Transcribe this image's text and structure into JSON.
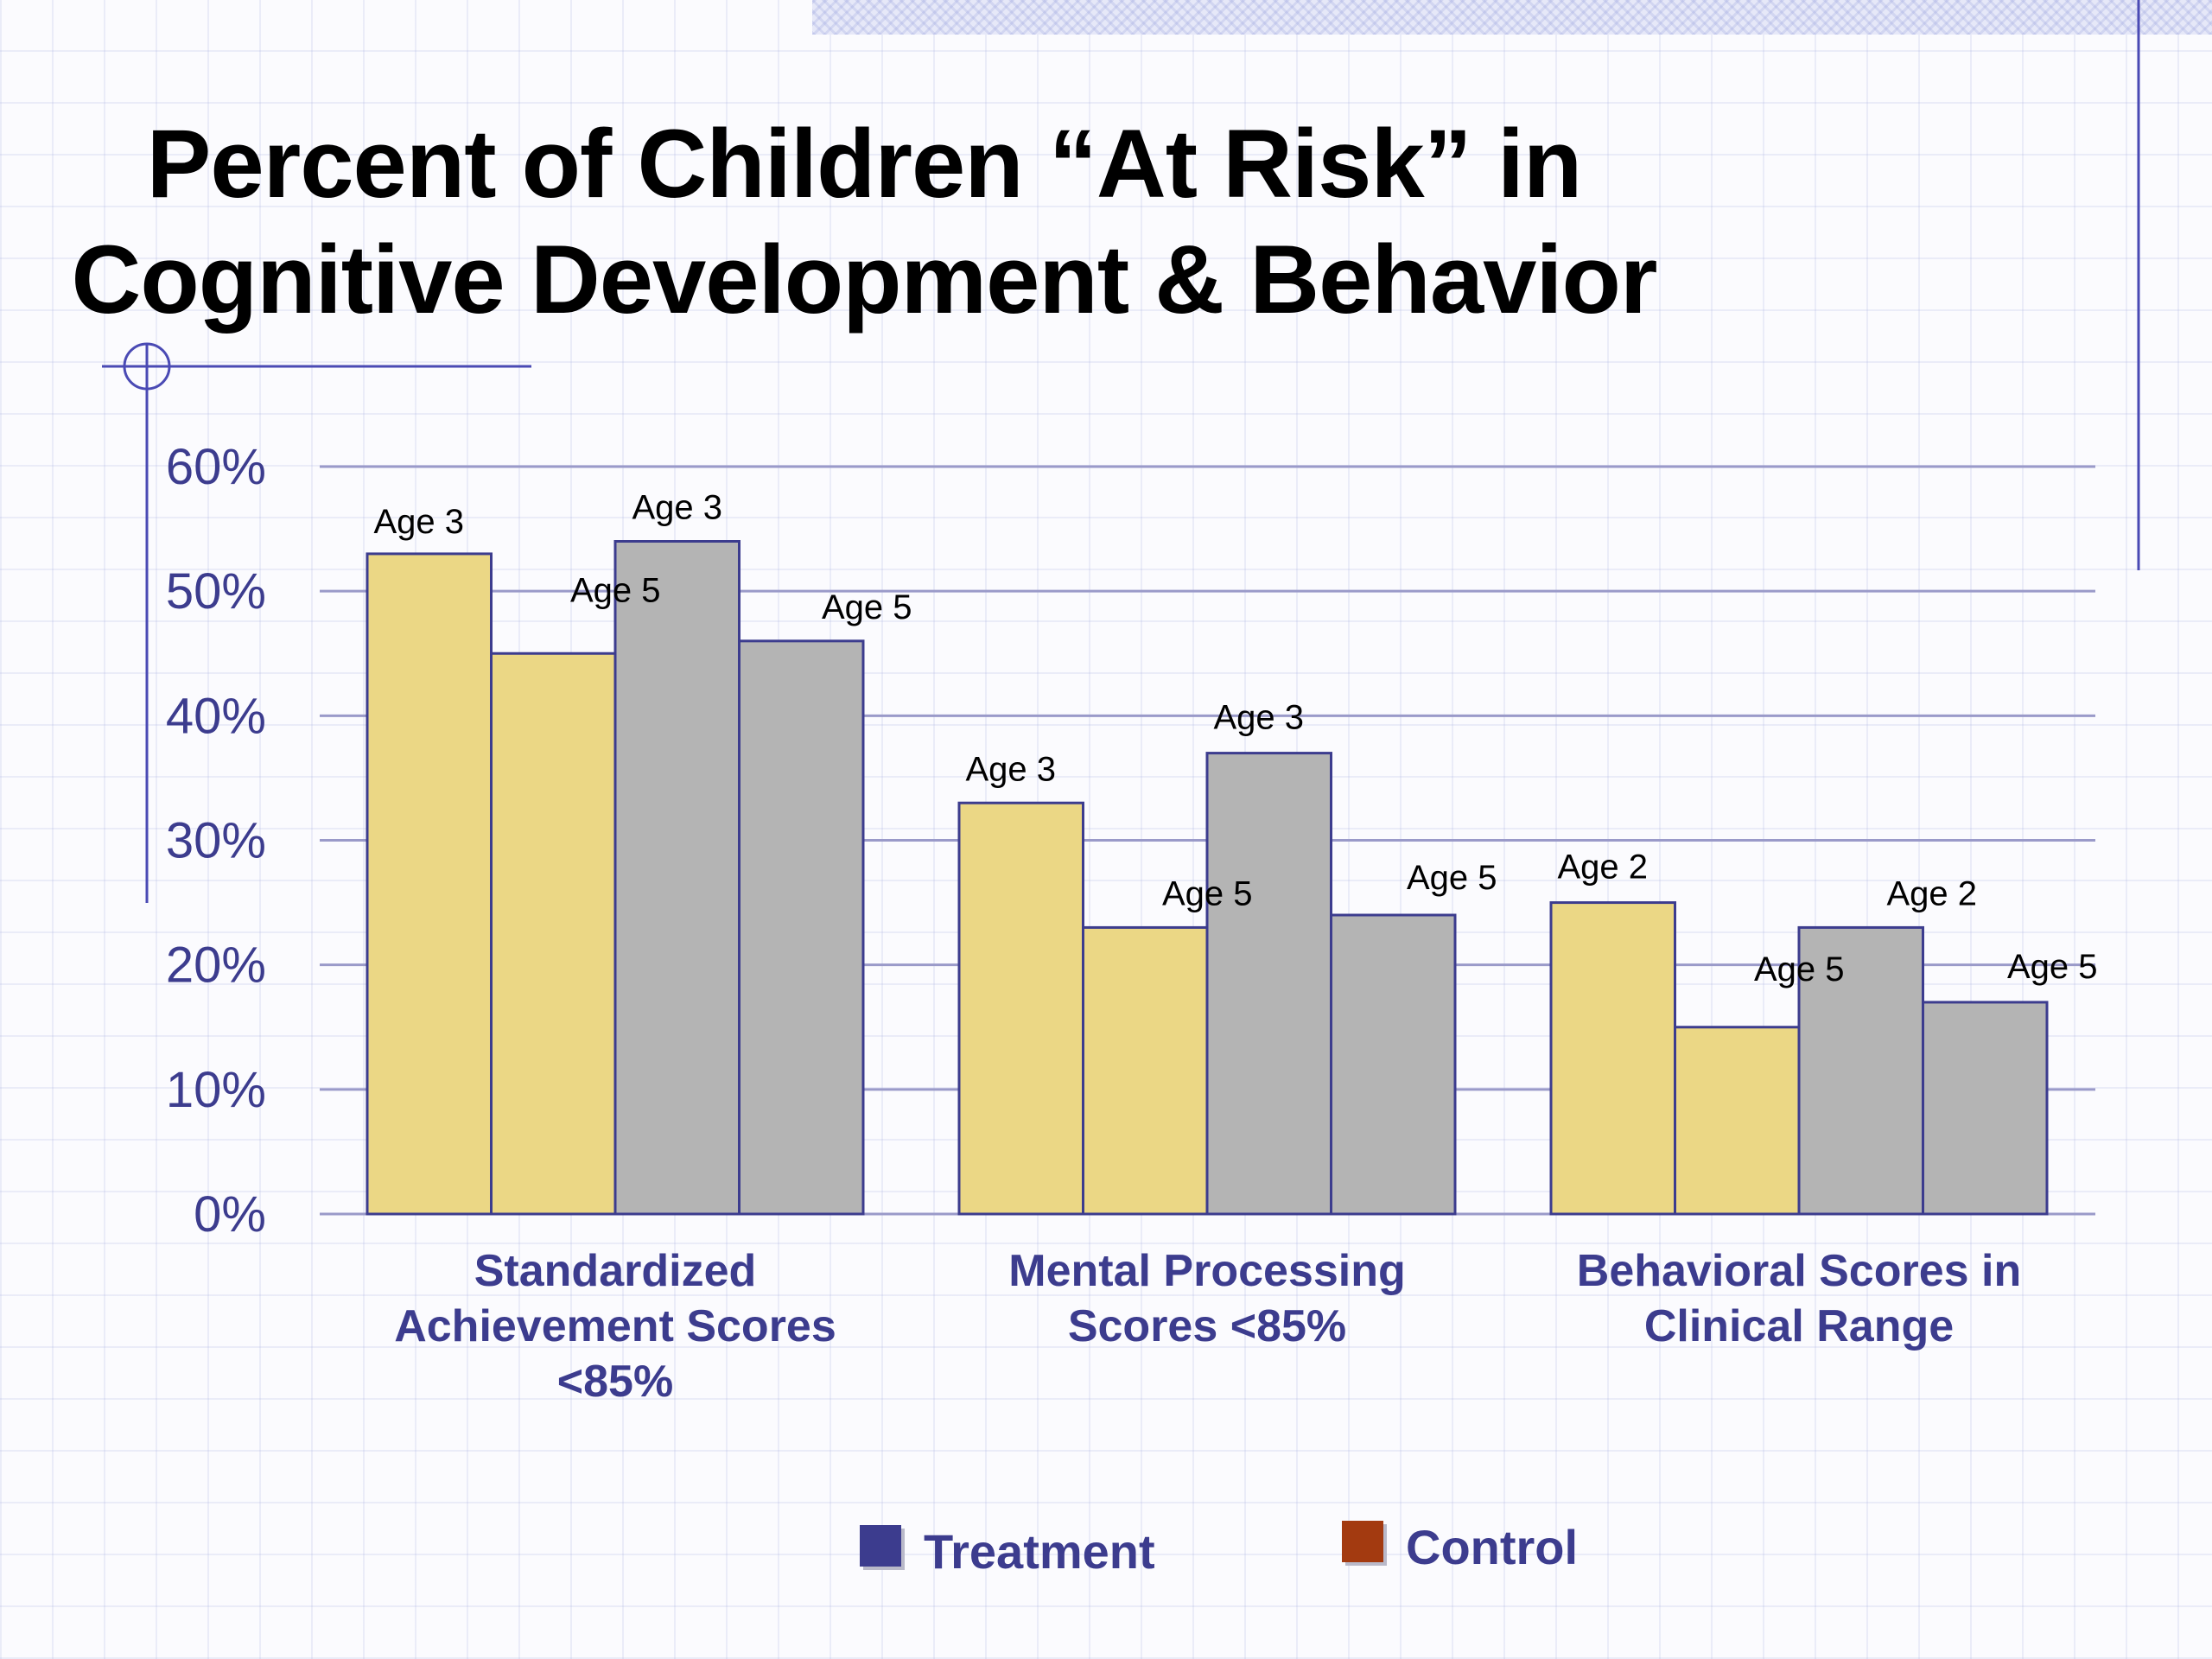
{
  "slide": {
    "title_line1": "Percent of Children “At Risk” in",
    "title_line2": "Cognitive Development & Behavior"
  },
  "colors": {
    "treatment_bar": "#ebd785",
    "control_bar": "#b4b4b4",
    "bar_outline": "#3c3c8e",
    "axis_text": "#3c3c8e",
    "gridline": "#9a9ac9",
    "legend_treatment": "#3c3c8e",
    "legend_control": "#a33a10"
  },
  "chart_data": {
    "type": "bar",
    "ylim": [
      0,
      60
    ],
    "yticks": [
      "0%",
      "10%",
      "20%",
      "30%",
      "40%",
      "50%",
      "60%"
    ],
    "grid": true,
    "legend_placement": "bottom",
    "categories": [
      "Standardized Achievement Scores <85%",
      "Mental Processing Scores <85%",
      "Behavioral Scores in Clinical Range"
    ],
    "category_label_lines": [
      [
        "Standardized",
        "Achievement Scores",
        "<85%"
      ],
      [
        "Mental Processing",
        "Scores <85%"
      ],
      [
        "Behavioral Scores in",
        "Clinical Range"
      ]
    ],
    "groups": [
      {
        "bars": [
          {
            "label": "Age 3",
            "value": 53,
            "series": "Treatment"
          },
          {
            "label": "Age 5",
            "value": 45,
            "series": "Treatment"
          },
          {
            "label": "Age 3",
            "value": 54,
            "series": "Control"
          },
          {
            "label": "Age 5",
            "value": 46,
            "series": "Control"
          }
        ]
      },
      {
        "bars": [
          {
            "label": "Age 3",
            "value": 33,
            "series": "Treatment"
          },
          {
            "label": "Age 5",
            "value": 23,
            "series": "Treatment"
          },
          {
            "label": "Age 3",
            "value": 37,
            "series": "Control"
          },
          {
            "label": "Age 5",
            "value": 24,
            "series": "Control"
          }
        ]
      },
      {
        "bars": [
          {
            "label": "Age 2",
            "value": 25,
            "series": "Treatment"
          },
          {
            "label": "Age 5",
            "value": 15,
            "series": "Treatment"
          },
          {
            "label": "Age 2",
            "value": 23,
            "series": "Control"
          },
          {
            "label": "Age 5",
            "value": 17,
            "series": "Control"
          }
        ]
      }
    ],
    "legend": [
      {
        "name": "Treatment"
      },
      {
        "name": "Control"
      }
    ]
  }
}
